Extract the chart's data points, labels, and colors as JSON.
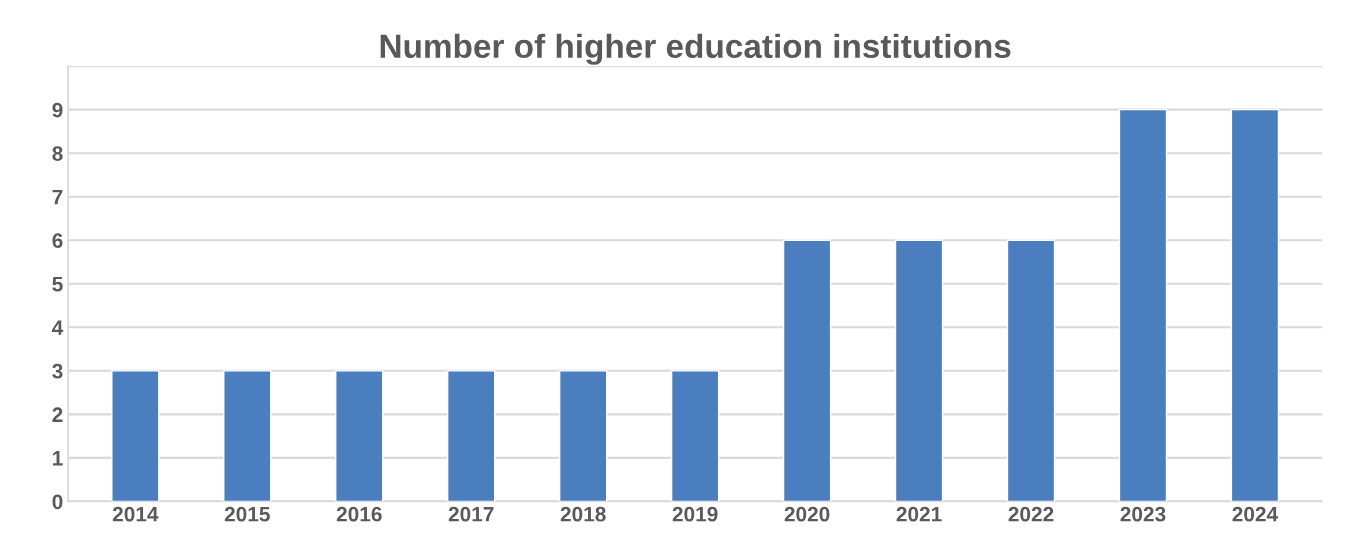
{
  "chart_data": {
    "type": "bar",
    "title": "Number of higher education institutions",
    "categories": [
      "2014",
      "2015",
      "2016",
      "2017",
      "2018",
      "2019",
      "2020",
      "2021",
      "2022",
      "2023",
      "2024"
    ],
    "values": [
      3,
      3,
      3,
      3,
      3,
      3,
      6,
      6,
      6,
      9,
      9
    ],
    "color": "#4a7ebf",
    "ylim": [
      0,
      10
    ],
    "yticks": [
      0,
      1,
      2,
      3,
      4,
      5,
      6,
      7,
      8,
      9,
      {
        "value": 10,
        "label": null
      }
    ],
    "grid": "y",
    "legend": false
  }
}
